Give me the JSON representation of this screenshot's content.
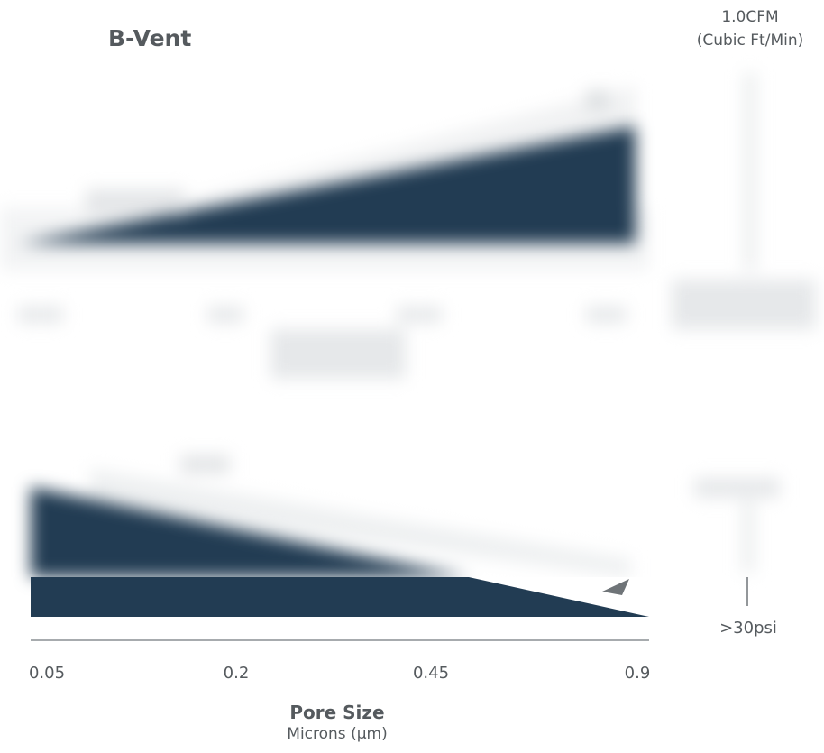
{
  "title": "B-Vent",
  "colors": {
    "fill": "#223c53",
    "text": "#555a5e",
    "axis": "#8a8f93",
    "pale": "#f2f3f4"
  },
  "chart_data": [
    {
      "type": "area",
      "title": "B-Vent",
      "unit_label": [
        "1.0CFM",
        "(Cubic Ft/Min)"
      ],
      "x": [
        "0.05",
        "0.2",
        "0.45",
        "0.9"
      ],
      "trend": "increasing",
      "note": "Top chart is rendered blurred in the original"
    },
    {
      "type": "area",
      "unit_label": ">30psi",
      "x": [
        "0.05",
        "0.2",
        "0.45",
        "0.9"
      ],
      "xlabel": "Pore Size",
      "xlabel_sub": "Microns (μm)",
      "trend": "decreasing"
    }
  ]
}
